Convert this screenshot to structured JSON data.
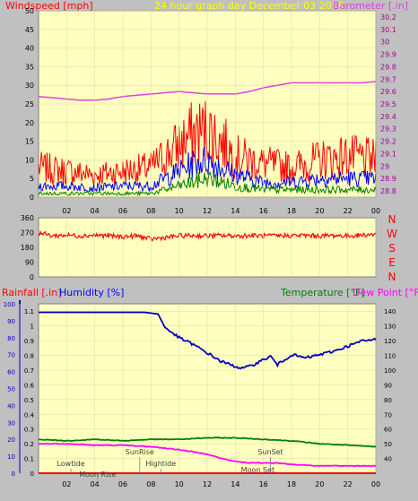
{
  "header": {
    "wind_label": "Windspeed [mph]",
    "title": "24 hour graph day   December 03 2018",
    "baro_label": "Barometer [.in]"
  },
  "colors": {
    "background": "#c0c0c0",
    "plot_bg": "#ffffc0",
    "gust": "#ff0000",
    "wind_avg": "#0000ff",
    "wind_low": "#008000",
    "barometer": "#e040e0",
    "direction": "#ff0000",
    "rain": "#ff0000",
    "humidity": "#0000c0",
    "temperature": "#008000",
    "dewpoint": "#ff00ff",
    "header_title": "#ffff00"
  },
  "x_ticks": [
    "02",
    "04",
    "06",
    "08",
    "10",
    "12",
    "14",
    "16",
    "18",
    "20",
    "22",
    "00"
  ],
  "chart_data": [
    {
      "type": "line",
      "y_ticks_left": [
        "0",
        "5",
        "10",
        "15",
        "20",
        "25",
        "30",
        "35",
        "40",
        "45",
        "50"
      ],
      "y_ticks_right": [
        "28.8",
        "28.9",
        "29",
        "29.1",
        "29.2",
        "29.3",
        "29.4",
        "29.5",
        "29.6",
        "29.7",
        "29.8",
        "29.9",
        "30",
        "30.1",
        "30.2"
      ],
      "ylim_left": [
        0,
        50
      ],
      "ylim_right": [
        28.75,
        30.25
      ],
      "x": [
        0,
        2,
        4,
        6,
        8,
        10,
        11,
        12,
        13,
        14,
        16,
        18,
        20,
        22,
        24
      ],
      "series": [
        {
          "name": "Gust",
          "values": [
            8,
            7,
            6,
            7,
            8,
            14,
            17,
            18,
            15,
            11,
            9,
            8,
            10,
            11,
            10
          ]
        },
        {
          "name": "Average",
          "values": [
            3,
            3,
            2.5,
            3,
            3,
            7,
            9,
            10,
            8,
            6,
            4,
            4,
            5,
            5,
            5
          ]
        },
        {
          "name": "Low",
          "values": [
            1,
            1,
            1,
            1,
            1,
            3,
            4,
            5,
            4,
            3,
            2,
            2,
            2,
            2,
            2
          ]
        }
      ],
      "barometer": {
        "x": [
          0,
          1,
          2,
          3,
          4,
          5,
          6,
          7,
          8,
          9,
          10,
          11,
          12,
          13,
          14,
          15,
          16,
          17,
          18,
          19,
          20,
          21,
          22,
          23,
          24
        ],
        "values": [
          29.56,
          29.55,
          29.54,
          29.53,
          29.53,
          29.54,
          29.56,
          29.57,
          29.58,
          29.59,
          29.6,
          29.59,
          29.58,
          29.58,
          29.58,
          29.6,
          29.63,
          29.65,
          29.67,
          29.67,
          29.67,
          29.67,
          29.67,
          29.67,
          29.68
        ]
      }
    },
    {
      "type": "line",
      "y_ticks_left": [
        "0",
        "90",
        "180",
        "270",
        "360"
      ],
      "y_ticks_right": [
        "N",
        "W",
        "S",
        "E",
        "N"
      ],
      "ylim": [
        0,
        360
      ],
      "series": [
        {
          "name": "Direction",
          "x": [
            0,
            1,
            2,
            3,
            4,
            5,
            6,
            7,
            8,
            9,
            10,
            11,
            12,
            13,
            14,
            15,
            16,
            17,
            18,
            19,
            20,
            21,
            22,
            23,
            24
          ],
          "values": [
            270,
            250,
            255,
            250,
            255,
            250,
            245,
            250,
            230,
            240,
            250,
            252,
            250,
            252,
            250,
            252,
            250,
            250,
            252,
            252,
            250,
            252,
            250,
            255,
            260
          ]
        }
      ]
    },
    {
      "type": "line",
      "y_ticks_rain": [
        "0",
        "0.1",
        "0.2",
        "0.3",
        "0.4",
        "0.5",
        "0.6",
        "0.7",
        "0.8",
        "0.9",
        "1",
        "1.1"
      ],
      "y_ticks_humidity": [
        "0",
        "10",
        "20",
        "30",
        "40",
        "50",
        "60",
        "70",
        "80",
        "90",
        "100"
      ],
      "y_ticks_temp": [
        "40",
        "50",
        "60",
        "70",
        "80",
        "90",
        "100",
        "110",
        "120",
        "130",
        "140"
      ],
      "ylim_rain": [
        0,
        1.15
      ],
      "ylim_humidity": [
        0,
        100
      ],
      "ylim_temp": [
        30,
        145
      ],
      "titles": {
        "rain": "Rainfall [.in]",
        "humidity": "Humidity [%]",
        "temperature": "Temperature [°F]",
        "dewpoint": "Dew Point [°F]"
      },
      "series": [
        {
          "name": "Humidity",
          "x": [
            0,
            4,
            7.5,
            8.5,
            9,
            10,
            11,
            12,
            13,
            14,
            14.5,
            15,
            16,
            16.5,
            17,
            18,
            19,
            20,
            21,
            22,
            23,
            24
          ],
          "values": [
            95,
            95,
            95,
            94,
            86,
            80,
            76,
            71,
            66,
            63,
            62,
            63,
            67,
            69,
            64,
            70,
            68,
            70,
            72,
            75,
            78,
            79
          ]
        },
        {
          "name": "Temperature",
          "x": [
            0,
            2,
            4,
            6,
            8,
            10,
            12,
            14,
            16,
            18,
            20,
            22,
            24
          ],
          "values": [
            53,
            52,
            53,
            52,
            53,
            53,
            54,
            54,
            53,
            52,
            50,
            49,
            48
          ]
        },
        {
          "name": "Dew Point",
          "x": [
            0,
            2,
            4,
            6,
            8,
            10,
            12,
            13,
            14,
            15,
            16,
            17,
            18,
            20,
            22,
            24
          ],
          "values": [
            50,
            50,
            49,
            49,
            48,
            46,
            43,
            40,
            38,
            37,
            37,
            37,
            36,
            35,
            35,
            35
          ]
        },
        {
          "name": "Rainfall",
          "x": [
            0,
            24
          ],
          "values": [
            0,
            0
          ]
        }
      ],
      "annotations": [
        {
          "text": "Lowtide",
          "x": 2.3
        },
        {
          "text": "Moon Rise",
          "x": 4.2
        },
        {
          "text": "SunRise",
          "x": 7.2
        },
        {
          "text": "Hightide",
          "x": 8.7
        },
        {
          "text": "SunSet",
          "x": 16.5
        },
        {
          "text": "Moon Set",
          "x": 15.6
        }
      ]
    }
  ]
}
